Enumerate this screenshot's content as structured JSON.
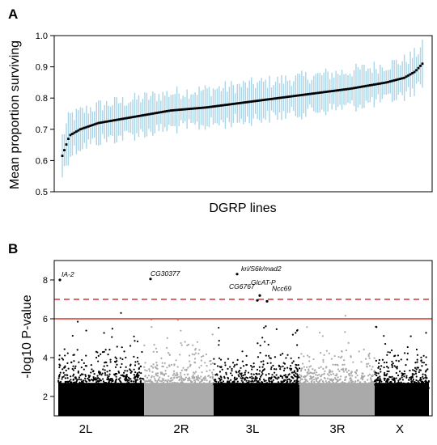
{
  "chart_data": [
    {
      "panel": "A",
      "type": "scatter",
      "xlabel": "DGRP lines",
      "ylabel": "Mean proportion surviving",
      "ylim": [
        0.5,
        1.0
      ],
      "yticks": [
        0.5,
        0.6,
        0.7,
        0.8,
        0.9,
        1.0
      ],
      "series": [
        {
          "marker_color": "#000000",
          "errorbar_color": "#a8d5e8",
          "n_points": 180,
          "sorted_ascending": true,
          "mean_quantiles": {
            "q": [
              0.0,
              0.02,
              0.05,
              0.1,
              0.2,
              0.3,
              0.4,
              0.5,
              0.6,
              0.7,
              0.8,
              0.9,
              0.95,
              0.98,
              1.0
            ],
            "value": [
              0.615,
              0.68,
              0.7,
              0.72,
              0.74,
              0.76,
              0.77,
              0.785,
              0.8,
              0.815,
              0.83,
              0.85,
              0.865,
              0.885,
              0.91
            ]
          },
          "typical_error_halfwidth": 0.06
        }
      ]
    },
    {
      "panel": "B",
      "type": "scatter",
      "subtype": "manhattan",
      "ylabel": "-log10 P-value",
      "ylim": [
        1,
        9
      ],
      "yticks": [
        2,
        4,
        6,
        8
      ],
      "categories": [
        "2L",
        "2R",
        "3L",
        "3R",
        "X"
      ],
      "category_colors": [
        "#000000",
        "#aaaaaa",
        "#000000",
        "#aaaaaa",
        "#000000"
      ],
      "thresholds": [
        {
          "value": 7.0,
          "style": "dashed",
          "color": "#e0302a"
        },
        {
          "value": 6.0,
          "style": "solid",
          "color": "#e0302a"
        }
      ],
      "annotations": [
        {
          "label": "IA-2",
          "chromosome": "2L",
          "value": 8.0
        },
        {
          "label": "CG30377",
          "chromosome": "2R",
          "value": 8.05
        },
        {
          "label": "kri/S6k/mad2",
          "chromosome": "3L",
          "value": 8.3
        },
        {
          "label": "GlcAT-P",
          "chromosome": "3L",
          "value": 7.2
        },
        {
          "label": "CG6767",
          "chromosome": "3L",
          "value": 6.95
        },
        {
          "label": "Ncc69",
          "chromosome": "3L",
          "value": 6.9
        }
      ]
    }
  ]
}
